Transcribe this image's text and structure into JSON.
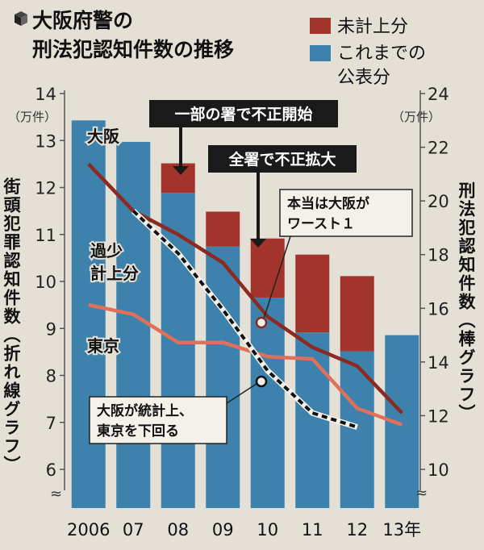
{
  "chart_data": {
    "type": "bar",
    "title_line1": "大阪府警の",
    "title_line2": "刑法犯認知件数の推移",
    "categories": [
      "2006",
      "07",
      "08",
      "09",
      "10",
      "11",
      "12",
      "13年"
    ],
    "legend": [
      {
        "label": "未計上分",
        "color": "#a3342c"
      },
      {
        "label_line1": "これまでの",
        "label_line2": "公表分",
        "color": "#3d82ad"
      }
    ],
    "bar_series": [
      {
        "name": "これまでの公表分",
        "color": "#3d82ad",
        "values": [
          23.0,
          22.2,
          20.3,
          18.3,
          16.4,
          15.1,
          14.4,
          15.0
        ]
      },
      {
        "name": "未計上分",
        "color": "#a3342c",
        "values": [
          0,
          0,
          1.1,
          1.3,
          2.2,
          2.9,
          2.8,
          0
        ]
      }
    ],
    "line_series": [
      {
        "name": "大阪",
        "color": "#8c2a22",
        "values": [
          12.5,
          11.5,
          11.0,
          10.4,
          9.25,
          8.6,
          8.2,
          7.2
        ]
      },
      {
        "name": "東京",
        "color": "#e0705a",
        "values": [
          9.5,
          9.3,
          8.7,
          8.7,
          8.4,
          8.35,
          7.3,
          6.95
        ]
      },
      {
        "name": "過少計上分",
        "color": "#111111",
        "dashed": true,
        "values": [
          null,
          11.5,
          10.6,
          9.4,
          8.1,
          7.2,
          6.9,
          null
        ]
      }
    ],
    "left_axis": {
      "unit": "（万件）",
      "label": "街頭犯罪認知件数（折れ線グラフ）",
      "ylim": [
        6,
        14
      ],
      "ticks": [
        "6",
        "7",
        "8",
        "9",
        "10",
        "11",
        "12",
        "13",
        "14"
      ]
    },
    "right_axis": {
      "unit": "（万件）",
      "label": "刑法犯認知件数（棒グラフ）",
      "ylim": [
        10,
        24
      ],
      "ticks": [
        "10",
        "12",
        "14",
        "16",
        "18",
        "20",
        "22",
        "24"
      ]
    },
    "line_labels": {
      "osaka": "大阪",
      "tokyo": "東京",
      "underreport_line1": "過少",
      "underreport_line2": "計上分"
    },
    "annotations": {
      "some_offices": "一部の署で不正開始",
      "all_offices": "全署で不正拡大",
      "worst_line1": "本当は大阪が",
      "worst_line2": "ワースト１",
      "below_line1": "大阪が統計上、",
      "below_line2": "東京を下回る"
    }
  }
}
